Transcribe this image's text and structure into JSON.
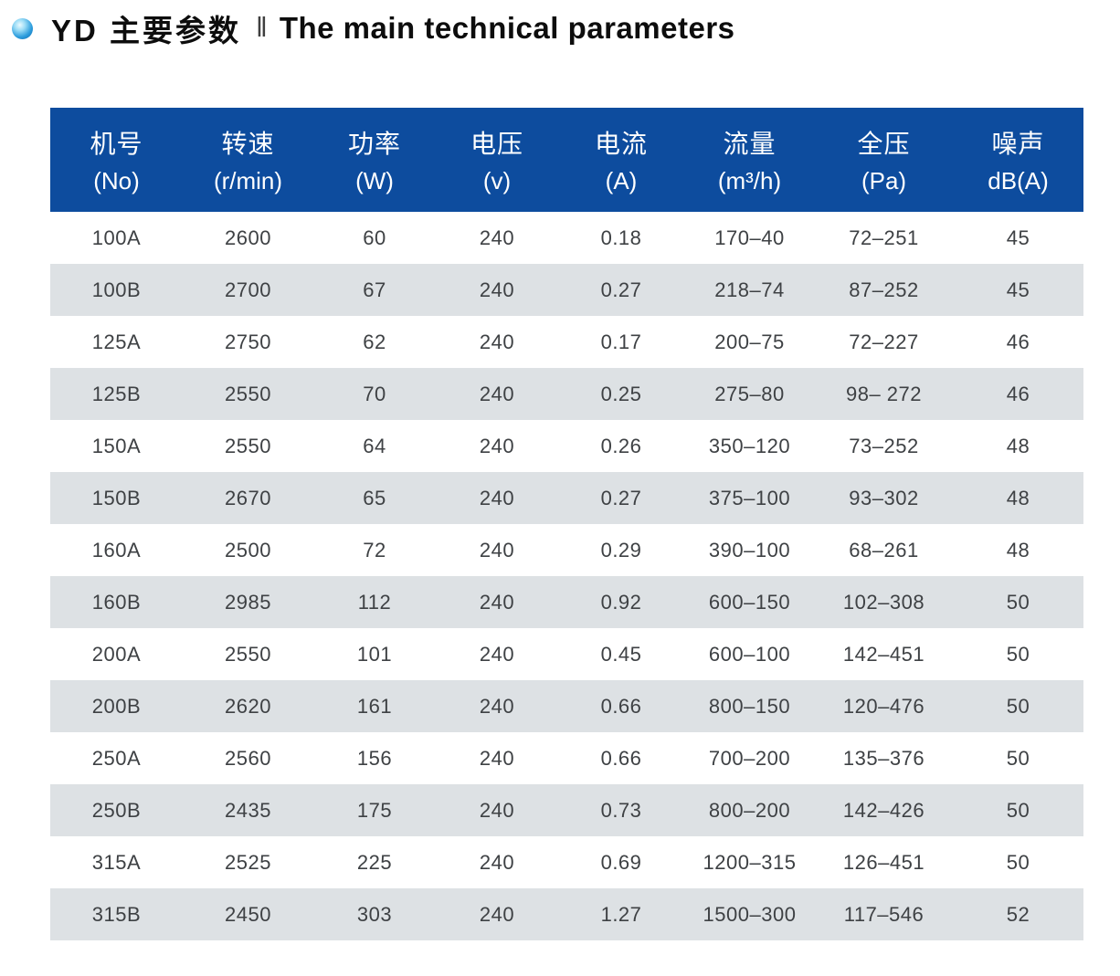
{
  "title": {
    "zh": "YD 主要参数",
    "divider": "‖",
    "en": "The main technical parameters"
  },
  "colors": {
    "header_bg": "#0d4c9e",
    "row_alt_bg": "#dde1e4",
    "bullet_blue": "#1f8fd6",
    "title_text": "#0d0d0d",
    "cell_text": "#3e4144"
  },
  "table": {
    "columns": [
      {
        "zh": "机号",
        "unit": "(No)"
      },
      {
        "zh": "转速",
        "unit": "(r/min)"
      },
      {
        "zh": "功率",
        "unit": "(W)"
      },
      {
        "zh": "电压",
        "unit": "(v)"
      },
      {
        "zh": "电流",
        "unit": "(A)"
      },
      {
        "zh": "流量",
        "unit": "(m³/h)"
      },
      {
        "zh": "全压",
        "unit": "(Pa)"
      },
      {
        "zh": "噪声",
        "unit": "dB(A)"
      }
    ],
    "rows": [
      [
        "100A",
        "2600",
        "60",
        "240",
        "0.18",
        "170–40",
        "72–251",
        "45"
      ],
      [
        "100B",
        "2700",
        "67",
        "240",
        "0.27",
        "218–74",
        "87–252",
        "45"
      ],
      [
        "125A",
        "2750",
        "62",
        "240",
        "0.17",
        "200–75",
        "72–227",
        "46"
      ],
      [
        "125B",
        "2550",
        "70",
        "240",
        "0.25",
        "275–80",
        "98– 272",
        "46"
      ],
      [
        "150A",
        "2550",
        "64",
        "240",
        "0.26",
        "350–120",
        "73–252",
        "48"
      ],
      [
        "150B",
        "2670",
        "65",
        "240",
        "0.27",
        "375–100",
        "93–302",
        "48"
      ],
      [
        "160A",
        "2500",
        "72",
        "240",
        "0.29",
        "390–100",
        "68–261",
        "48"
      ],
      [
        "160B",
        "2985",
        "112",
        "240",
        "0.92",
        "600–150",
        "102–308",
        "50"
      ],
      [
        "200A",
        "2550",
        "101",
        "240",
        "0.45",
        "600–100",
        "142–451",
        "50"
      ],
      [
        "200B",
        "2620",
        "161",
        "240",
        "0.66",
        "800–150",
        "120–476",
        "50"
      ],
      [
        "250A",
        "2560",
        "156",
        "240",
        "0.66",
        "700–200",
        "135–376",
        "50"
      ],
      [
        "250B",
        "2435",
        "175",
        "240",
        "0.73",
        "800–200",
        "142–426",
        "50"
      ],
      [
        "315A",
        "2525",
        "225",
        "240",
        "0.69",
        "1200–315",
        "126–451",
        "50"
      ],
      [
        "315B",
        "2450",
        "303",
        "240",
        "1.27",
        "1500–300",
        "117–546",
        "52"
      ]
    ]
  }
}
